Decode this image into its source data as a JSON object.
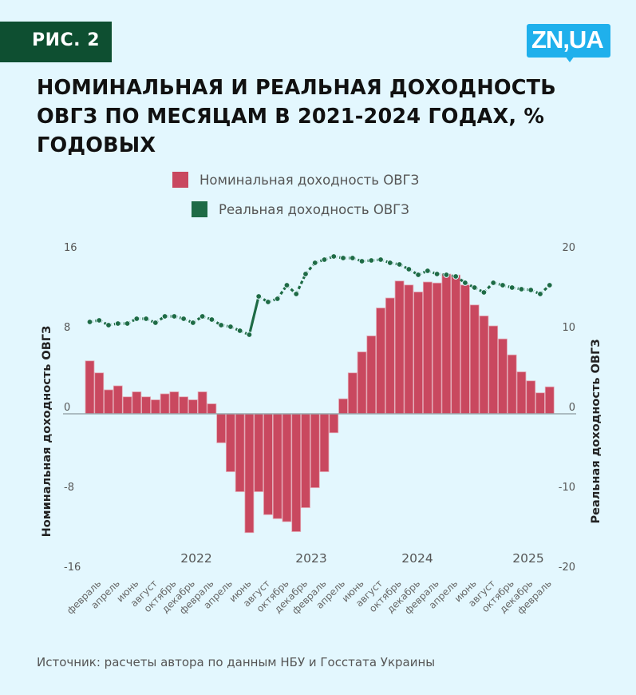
{
  "badge": "РИС. 2",
  "logo": "ZN,UA",
  "title": "НОМИНАЛЬНАЯ И РЕАЛЬНАЯ ДОХОДНОСТЬ ОВГЗ ПО МЕСЯЦАМ В 2021-2024 ГОДАХ, % ГОДОВЫХ",
  "source": "Источник: расчеты автора по данным НБУ и Госстата Украины",
  "colors": {
    "nominal": "#c9485f",
    "real": "#1e6b45",
    "badge": "#0e4f31",
    "logo": "#1fb0ec",
    "background": "#e3f7fe"
  },
  "chart_data": {
    "type": "bar+line",
    "title": "НОМИНАЛЬНАЯ И РЕАЛЬНАЯ ДОХОДНОСТЬ ОВГЗ ПО МЕСЯЦАМ В 2021-2024 ГОДАХ, % ГОДОВЫХ",
    "legend": [
      "Номинальная доходность ОВГЗ",
      "Реальная доходность ОВГЗ"
    ],
    "legend_position": "top",
    "ylabel_left": "Номинальная доходность ОВГЗ",
    "ylabel_right": "Реальная доходность ОВГЗ",
    "ylim_left": [
      -16,
      16
    ],
    "yticks_left": [
      "16",
      "8",
      "0",
      "-8",
      "-16"
    ],
    "ylim_right": [
      -20,
      20
    ],
    "yticks_right": [
      "20",
      "10",
      "0",
      "-10",
      "-20"
    ],
    "year_labels": [
      "2022",
      "2023",
      "2024",
      "2025"
    ],
    "month_labels": [
      "февраль",
      "апрель",
      "июнь",
      "август",
      "октябрь",
      "декабрь",
      "февраль",
      "апрель",
      "июнь",
      "август",
      "октябрь",
      "декабрь",
      "февраль",
      "апрель",
      "июнь",
      "август",
      "октябрь",
      "декабрь",
      "февраль",
      "апрель",
      "июнь",
      "август",
      "октябрь",
      "декабрь",
      "февраль"
    ],
    "series": [
      {
        "name": "Номинальная доходность ОВГЗ",
        "type": "bar",
        "axis": "left",
        "values": [
          5.3,
          4.1,
          2.4,
          2.8,
          1.7,
          2.2,
          1.7,
          1.4,
          2.0,
          2.2,
          1.7,
          1.4,
          2.2,
          1.0,
          -2.9,
          -5.8,
          -7.8,
          -11.9,
          -7.8,
          -10.1,
          -10.5,
          -10.8,
          -11.8,
          -9.4,
          -7.4,
          -5.8,
          -1.9,
          1.5,
          4.1,
          6.2,
          7.8,
          10.6,
          11.6,
          13.3,
          12.9,
          12.2,
          13.2,
          13.1,
          14.0,
          13.9,
          12.9,
          10.9,
          9.8,
          8.8,
          7.5,
          5.9,
          4.2,
          3.3,
          2.1,
          2.7
        ]
      },
      {
        "name": "Реальная доходность ОВГЗ",
        "type": "line",
        "axis": "right",
        "values": [
          11.5,
          11.7,
          11.1,
          11.3,
          11.3,
          11.9,
          11.9,
          11.4,
          12.2,
          12.2,
          11.9,
          11.4,
          12.2,
          11.8,
          11.1,
          10.9,
          10.4,
          9.9,
          14.7,
          14.0,
          14.4,
          16.1,
          15.0,
          17.5,
          18.9,
          19.3,
          19.7,
          19.5,
          19.5,
          19.1,
          19.2,
          19.3,
          18.9,
          18.7,
          18.1,
          17.4,
          17.9,
          17.5,
          17.4,
          17.2,
          16.4,
          15.8,
          15.2,
          16.4,
          16.1,
          15.8,
          15.6,
          15.5,
          15.0,
          16.1
        ]
      }
    ]
  }
}
